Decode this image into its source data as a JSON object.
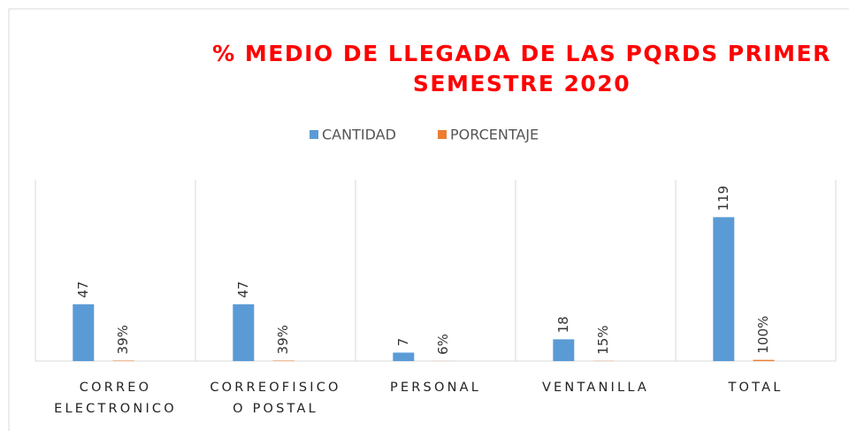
{
  "chart_data": {
    "type": "bar",
    "title": "% MEDIO DE LLEGADA DE LAS PQRDS PRIMER SEMESTRE 2020",
    "categories": [
      "CORREO ELECTRONICO",
      "CORREOFISICO O POSTAL",
      "PERSONAL",
      "VENTANILLA",
      "TOTAL"
    ],
    "series": [
      {
        "name": "CANTIDAD",
        "color": "#5b9bd5",
        "values": [
          47,
          47,
          7,
          18,
          119
        ]
      },
      {
        "name": "PORCENTAJE",
        "color": "#ed7d31",
        "values": [
          0.39,
          0.39,
          0.06,
          0.15,
          1.0
        ],
        "value_labels": [
          "39%",
          "39%",
          "6%",
          "15%",
          "100%"
        ]
      }
    ],
    "ylim": [
      0,
      150
    ],
    "legend": "top"
  }
}
